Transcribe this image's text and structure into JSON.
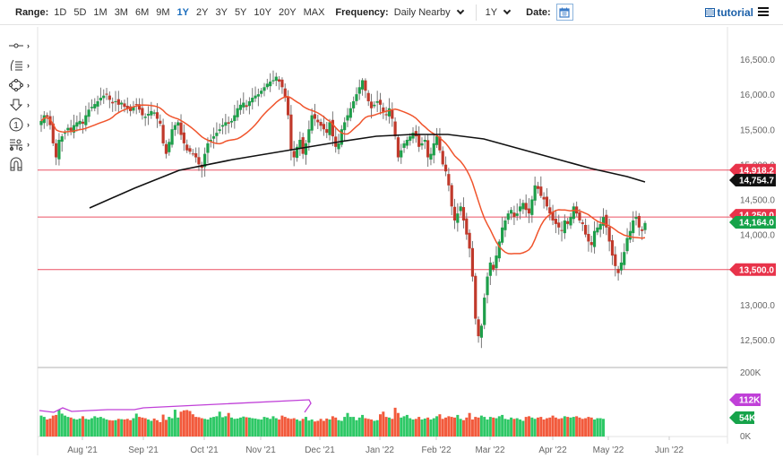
{
  "toolbar": {
    "range_label": "Range:",
    "ranges": [
      "1D",
      "5D",
      "1M",
      "3M",
      "6M",
      "9M",
      "1Y",
      "2Y",
      "3Y",
      "5Y",
      "10Y",
      "20Y",
      "MAX"
    ],
    "active_range": "1Y",
    "frequency_label": "Frequency:",
    "frequency_value": "Daily Nearby",
    "period_value": "1Y",
    "date_label": "Date:",
    "tutorial_label": "tutorial"
  },
  "left_tools": [
    {
      "name": "crosshair-line-tool-icon",
      "glyph": "-o-"
    },
    {
      "name": "fibonacci-tool-icon",
      "glyph": "∫≡"
    },
    {
      "name": "shapes-tool-icon",
      "glyph": "◇"
    },
    {
      "name": "arrow-down-tool-icon",
      "glyph": "⇩"
    },
    {
      "name": "numbered-marker-tool-icon",
      "glyph": "①"
    },
    {
      "name": "measure-tool-icon",
      "glyph": "≡"
    },
    {
      "name": "magnet-tool-icon",
      "glyph": "∩"
    }
  ],
  "colors": {
    "up": "#1e9e4a",
    "down": "#c0392b",
    "ma50": "#f0542c",
    "ma200": "#111111",
    "hline": "#e8334a",
    "vol_up": "#2ec866",
    "vol_down": "#f25a3c",
    "vol_ma": "#c040d8",
    "tag_green": "#16a34a",
    "tag_red": "#e8334a",
    "tag_black": "#111111",
    "tag_purple": "#c040d8",
    "active_blue": "#1a6dbd"
  },
  "chart_data": {
    "type": "candlestick",
    "title": "",
    "x_tick_labels": [
      "Aug '21",
      "Sep '21",
      "Oct '21",
      "Nov '21",
      "Dec '21",
      "Jan '22",
      "Feb '22",
      "Mar '22",
      "Apr '22",
      "May '22",
      "Jun '22"
    ],
    "y_tick_labels": [
      "16,500.0",
      "16,000.0",
      "15,500.0",
      "15,000.0",
      "14,500.0",
      "14,000.0",
      "13,000.0",
      "12,500.0"
    ],
    "ylim": [
      12300,
      16800
    ],
    "price_tags": [
      {
        "label": "14,918.2",
        "value": 14918.2,
        "type": "horizontal-line",
        "color": "red"
      },
      {
        "label": "14,754.7",
        "value": 14754.7,
        "type": "ma200",
        "color": "black"
      },
      {
        "label": "14,250.0",
        "value": 14250.0,
        "type": "horizontal-line",
        "color": "red"
      },
      {
        "label": "14,164.0",
        "value": 14164.0,
        "type": "last-price",
        "color": "green"
      },
      {
        "label": "13,500.0",
        "value": 13500.0,
        "type": "horizontal-line",
        "color": "red"
      }
    ],
    "horizontal_lines": [
      14918.2,
      14250.0,
      13500.0
    ],
    "last_price": 14164.0,
    "ma200_last": 14754.7,
    "volume_panel": {
      "y_tick_labels": [
        "200K",
        "0K"
      ],
      "tags": [
        {
          "label": "112K",
          "value": 112,
          "color": "purple"
        },
        {
          "label": "54K",
          "value": 54,
          "color": "green"
        }
      ],
      "ylim": [
        0,
        200
      ]
    },
    "closes": [
      15620,
      15700,
      15680,
      15560,
      15300,
      15100,
      15350,
      15400,
      15450,
      15520,
      15480,
      15560,
      15600,
      15620,
      15580,
      15700,
      15780,
      15820,
      15860,
      15900,
      15950,
      15980,
      16000,
      15920,
      15870,
      15900,
      15850,
      15880,
      15820,
      15790,
      15760,
      15820,
      15850,
      15780,
      15700,
      15680,
      15720,
      15760,
      15740,
      15650,
      15580,
      15300,
      15150,
      15320,
      15500,
      15560,
      15600,
      15420,
      15300,
      15200,
      15180,
      15150,
      15100,
      15000,
      14950,
      15150,
      15300,
      15350,
      15400,
      15450,
      15500,
      15560,
      15600,
      15580,
      15620,
      15700,
      15800,
      15850,
      15880,
      15820,
      15900,
      15950,
      15980,
      16000,
      16050,
      16100,
      16150,
      16180,
      16200,
      16250,
      16180,
      16100,
      15950,
      15700,
      15200,
      15100,
      15250,
      15350,
      15150,
      15300,
      15500,
      15700,
      15650,
      15600,
      15550,
      15500,
      15450,
      15600,
      15400,
      15250,
      15300,
      15500,
      15600,
      15700,
      15800,
      15900,
      16000,
      16100,
      16200,
      16050,
      15900,
      15800,
      15850,
      15900,
      15850,
      15750,
      15700,
      15800,
      15650,
      15400,
      15100,
      15200,
      15300,
      15350,
      15400,
      15450,
      15400,
      15250,
      15300,
      15350,
      15100,
      15150,
      15300,
      15400,
      15200,
      15000,
      14900,
      14700,
      14400,
      14200,
      14300,
      14400,
      14200,
      14000,
      13800,
      13400,
      12800,
      12550,
      12700,
      13100,
      13400,
      13600,
      13500,
      13700,
      13900,
      14100,
      14200,
      14300,
      14350,
      14250,
      14300,
      14400,
      14450,
      14350,
      14300,
      14500,
      14700,
      14650,
      14550,
      14500,
      14400,
      14300,
      14200,
      14150,
      14100,
      14050,
      14200,
      14150,
      14250,
      14400,
      14300,
      14200,
      14150,
      14000,
      13900,
      13850,
      14050,
      14100,
      14150,
      14250,
      14100,
      13900,
      13700,
      13550,
      13450,
      13600,
      13750,
      13950,
      14050,
      14200,
      14250,
      14100,
      14050,
      14164
    ]
  },
  "volume_bars": [
    64,
    60,
    52,
    55,
    64,
    66,
    82,
    70,
    64,
    60,
    58,
    54,
    52,
    55,
    62,
    54,
    52,
    56,
    62,
    58,
    60,
    56,
    52,
    50,
    49,
    50,
    54,
    53,
    52,
    54,
    50,
    56,
    70,
    60,
    58,
    56,
    52,
    48,
    55,
    50,
    44,
    67,
    51,
    60,
    56,
    82,
    58,
    76,
    80,
    81,
    78,
    68,
    60,
    59,
    56,
    54,
    52,
    58,
    60,
    62,
    76,
    59,
    62,
    72,
    58,
    54,
    55,
    58,
    61,
    59,
    58,
    56,
    55,
    53,
    52,
    60,
    58,
    54,
    62,
    56,
    52,
    64,
    60,
    56,
    54,
    56,
    52,
    48,
    54,
    60,
    49,
    52,
    46,
    48,
    54,
    48,
    55,
    52,
    62,
    58,
    50,
    48,
    60,
    72,
    60,
    60,
    50,
    58,
    66,
    56,
    54,
    52,
    48,
    50,
    68,
    76,
    60,
    58,
    54,
    88,
    72,
    58,
    62,
    66,
    56,
    52,
    54,
    60,
    52,
    55,
    58,
    52,
    56,
    62,
    68,
    54,
    58,
    62,
    60,
    58,
    66,
    54,
    50,
    58,
    72,
    52,
    60,
    58,
    64,
    60,
    52,
    60,
    58,
    56,
    62,
    66,
    54,
    52,
    58,
    54,
    56,
    52,
    48,
    60,
    62,
    58,
    54,
    58,
    60,
    52,
    56,
    58,
    64,
    58,
    54,
    56,
    62,
    60,
    58,
    60,
    62,
    58,
    54,
    56,
    60,
    58,
    52,
    56,
    56,
    54
  ]
}
